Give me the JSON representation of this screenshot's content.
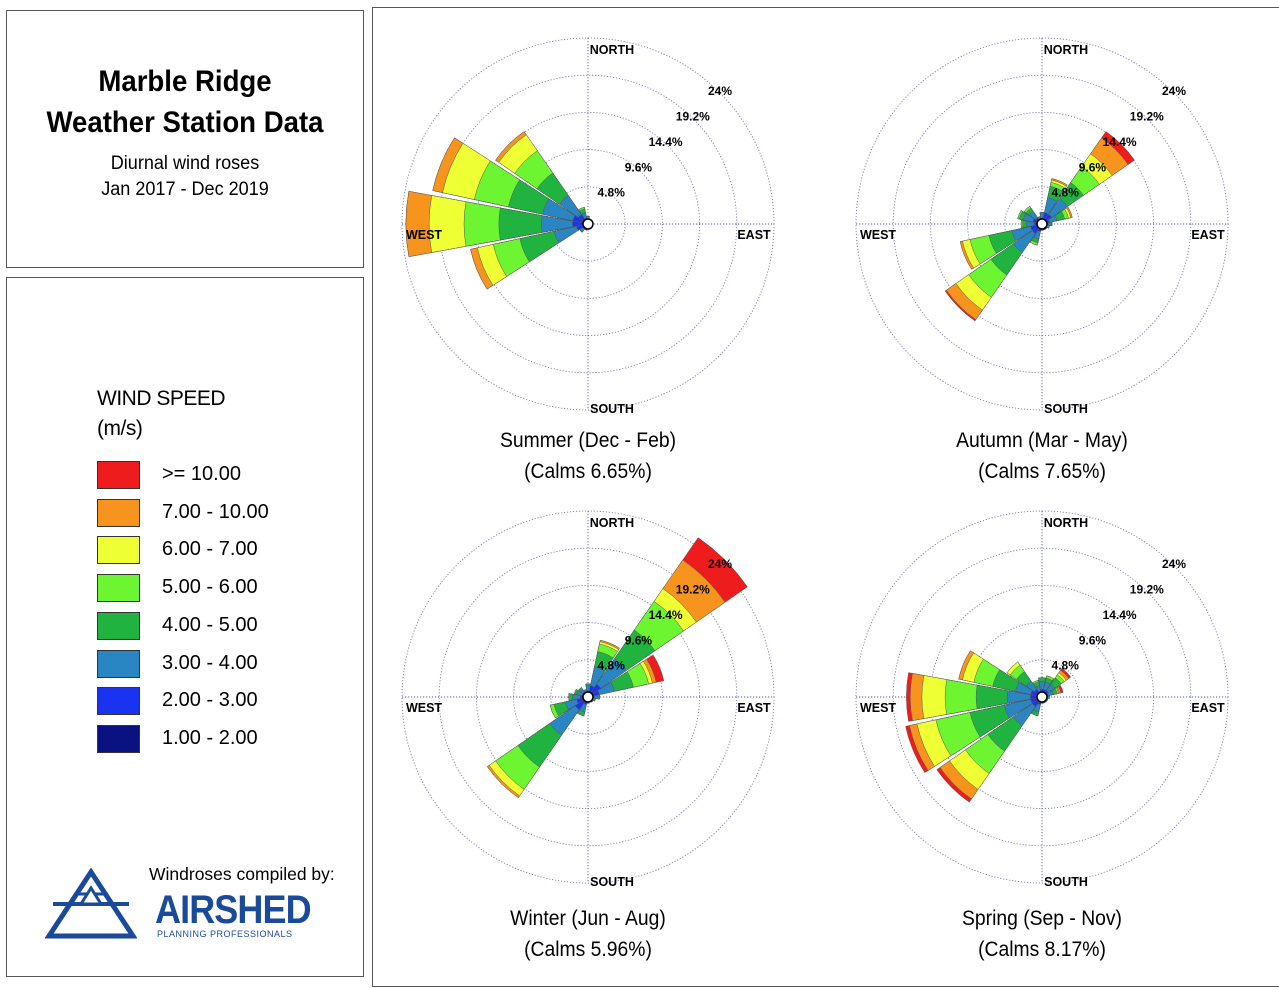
{
  "header": {
    "title_line1": "Marble Ridge",
    "title_line2": "Weather Station Data",
    "subtitle_line1": "Diurnal wind roses",
    "subtitle_line2": "Jan 2017 - Dec 2019"
  },
  "legend": {
    "title_line1": "WIND SPEED",
    "title_line2": "(m/s)",
    "items": [
      {
        "label": ">= 10.00",
        "color": "#ee1c1c"
      },
      {
        "label": "7.00 - 10.00",
        "color": "#f7941d"
      },
      {
        "label": "6.00 - 7.00",
        "color": "#eeff33"
      },
      {
        "label": "5.00 - 6.00",
        "color": "#6cf530"
      },
      {
        "label": "4.00 - 5.00",
        "color": "#20b340"
      },
      {
        "label": "3.00 - 4.00",
        "color": "#2a86c2"
      },
      {
        "label": "2.00 - 3.00",
        "color": "#1a33f0"
      },
      {
        "label": "1.00 - 2.00",
        "color": "#0a1180"
      }
    ]
  },
  "credit": {
    "compiled_by": "Windroses compiled by:",
    "logo_name": "AIRSHED",
    "logo_tagline": "PLANNING PROFESSIONALS"
  },
  "chart_data": [
    {
      "type": "windrose",
      "caption_line1": "Summer (Dec - Feb)",
      "caption_line2": "(Calms 6.65%)",
      "direction_labels": [
        "NORTH",
        "EAST",
        "SOUTH",
        "WEST"
      ],
      "ring_labels": [
        "4.8%",
        "9.6%",
        "14.4%",
        "19.2%",
        "24%"
      ],
      "rings": [
        4.8,
        9.6,
        14.4,
        19.2,
        24
      ],
      "sectors_deg": [
        0,
        22.5,
        45,
        67.5,
        90,
        112.5,
        135,
        157.5,
        180,
        202.5,
        225,
        247.5,
        270,
        292.5,
        315,
        337.5
      ],
      "cumulative_percent": [
        [
          0.3,
          0.6,
          1.0,
          1.0,
          1.0,
          1.0,
          1.0,
          1.0
        ],
        [
          0.3,
          0.5,
          0.7,
          0.7,
          0.7,
          0.7,
          0.7,
          0.7
        ],
        [
          0.3,
          0.5,
          0.6,
          0.6,
          0.6,
          0.6,
          0.6,
          0.6
        ],
        [
          0.3,
          0.5,
          0.6,
          0.6,
          0.6,
          0.6,
          0.6,
          0.6
        ],
        [
          0.3,
          0.5,
          0.6,
          0.6,
          0.6,
          0.6,
          0.6,
          0.6
        ],
        [
          0.3,
          0.5,
          0.6,
          0.6,
          0.6,
          0.6,
          0.6,
          0.6
        ],
        [
          0.3,
          0.5,
          0.6,
          0.6,
          0.6,
          0.6,
          0.6,
          0.6
        ],
        [
          0.3,
          0.5,
          0.6,
          0.6,
          0.6,
          0.6,
          0.6,
          0.6
        ],
        [
          0.3,
          0.5,
          0.6,
          0.6,
          0.6,
          0.6,
          0.6,
          0.6
        ],
        [
          0.3,
          0.5,
          0.8,
          0.8,
          0.8,
          0.8,
          0.8,
          0.8
        ],
        [
          0.3,
          0.8,
          1.2,
          1.3,
          1.3,
          1.3,
          1.3,
          1.3
        ],
        [
          0.3,
          1.5,
          4.5,
          9.0,
          12.5,
          14.6,
          15.5,
          15.5
        ],
        [
          0.4,
          2.0,
          6.0,
          11.5,
          16.0,
          20.5,
          23.5,
          23.5
        ],
        [
          0.4,
          2.0,
          6.0,
          10.5,
          15.0,
          19.2,
          20.5,
          20.5
        ],
        [
          0.3,
          1.5,
          4.5,
          8.0,
          11.5,
          14.0,
          14.5,
          14.5
        ],
        [
          0.3,
          0.8,
          1.5,
          2.0,
          2.2,
          2.2,
          2.2,
          2.2
        ]
      ]
    },
    {
      "type": "windrose",
      "caption_line1": "Autumn (Mar - May)",
      "caption_line2": "(Calms 7.65%)",
      "direction_labels": [
        "NORTH",
        "EAST",
        "SOUTH",
        "WEST"
      ],
      "ring_labels": [
        "4.8%",
        "9.6%",
        "14.4%",
        "19.2%",
        "24%"
      ],
      "rings": [
        4.8,
        9.6,
        14.4,
        19.2,
        24
      ],
      "sectors_deg": [
        0,
        22.5,
        45,
        67.5,
        90,
        112.5,
        135,
        157.5,
        180,
        202.5,
        225,
        247.5,
        270,
        292.5,
        315,
        337.5
      ],
      "cumulative_percent": [
        [
          0.3,
          0.8,
          1.5,
          1.5,
          1.5,
          1.5,
          1.5,
          1.5
        ],
        [
          0.3,
          1.5,
          3.5,
          5.0,
          5.5,
          5.8,
          6.0,
          6.0
        ],
        [
          0.3,
          1.5,
          4.0,
          6.5,
          9.0,
          11.0,
          13.5,
          14.5
        ],
        [
          0.3,
          1.0,
          2.0,
          3.0,
          3.5,
          3.8,
          4.0,
          4.0
        ],
        [
          0.3,
          0.8,
          1.2,
          1.3,
          1.3,
          1.3,
          1.3,
          1.3
        ],
        [
          0.3,
          0.6,
          1.0,
          1.0,
          1.0,
          1.0,
          1.0,
          1.0
        ],
        [
          0.3,
          0.5,
          0.8,
          0.8,
          0.8,
          0.8,
          0.8,
          0.8
        ],
        [
          0.3,
          0.5,
          0.8,
          0.8,
          0.8,
          0.8,
          0.8,
          0.8
        ],
        [
          0.3,
          0.5,
          0.8,
          0.8,
          0.8,
          0.8,
          0.8,
          0.8
        ],
        [
          0.3,
          1.0,
          2.0,
          2.5,
          2.8,
          2.8,
          2.8,
          2.8
        ],
        [
          0.3,
          1.5,
          4.5,
          8.0,
          11.5,
          13.5,
          15.0,
          15.2
        ],
        [
          0.3,
          1.5,
          4.0,
          7.0,
          9.5,
          10.5,
          10.8,
          10.8
        ],
        [
          0.3,
          1.0,
          2.0,
          2.5,
          2.7,
          2.7,
          2.7,
          2.7
        ],
        [
          0.3,
          1.2,
          2.5,
          3.0,
          3.2,
          3.2,
          3.2,
          3.2
        ],
        [
          0.3,
          1.0,
          2.0,
          2.5,
          2.8,
          2.8,
          2.8,
          2.8
        ],
        [
          0.3,
          0.6,
          1.0,
          1.0,
          1.0,
          1.0,
          1.0,
          1.0
        ]
      ]
    },
    {
      "type": "windrose",
      "caption_line1": "Winter (Jun - Aug)",
      "caption_line2": "(Calms 5.96%)",
      "direction_labels": [
        "NORTH",
        "EAST",
        "SOUTH",
        "WEST"
      ],
      "ring_labels": [
        "4.8%",
        "9.6%",
        "14.4%",
        "19.2%",
        "24%"
      ],
      "rings": [
        4.8,
        9.6,
        14.4,
        19.2,
        24
      ],
      "sectors_deg": [
        0,
        22.5,
        45,
        67.5,
        90,
        112.5,
        135,
        157.5,
        180,
        202.5,
        225,
        247.5,
        270,
        292.5,
        315,
        337.5
      ],
      "cumulative_percent": [
        [
          0.3,
          0.8,
          1.5,
          1.7,
          1.7,
          1.7,
          1.7,
          1.7
        ],
        [
          0.3,
          1.5,
          4.0,
          6.0,
          7.0,
          7.3,
          7.5,
          7.5
        ],
        [
          0.3,
          2.0,
          6.0,
          10.5,
          15.0,
          17.0,
          21.5,
          25.0
        ],
        [
          0.3,
          1.5,
          3.5,
          6.0,
          8.0,
          8.5,
          9.0,
          10.0
        ],
        [
          0.3,
          0.8,
          1.3,
          1.5,
          1.5,
          1.5,
          1.5,
          1.5
        ],
        [
          0.3,
          0.6,
          1.0,
          1.0,
          1.0,
          1.0,
          1.0,
          1.0
        ],
        [
          0.3,
          0.6,
          0.8,
          0.8,
          0.8,
          0.8,
          0.8,
          0.8
        ],
        [
          0.3,
          0.5,
          0.7,
          0.7,
          0.7,
          0.7,
          0.7,
          0.7
        ],
        [
          0.3,
          0.6,
          0.8,
          0.8,
          0.8,
          0.8,
          0.8,
          0.8
        ],
        [
          0.3,
          1.0,
          2.0,
          2.5,
          2.5,
          2.5,
          2.5,
          2.5
        ],
        [
          0.3,
          2.0,
          6.0,
          11.0,
          14.5,
          15.5,
          15.8,
          15.8
        ],
        [
          0.3,
          1.5,
          3.0,
          4.5,
          5.0,
          5.0,
          5.0,
          5.0
        ],
        [
          0.3,
          1.0,
          2.0,
          2.5,
          2.5,
          2.5,
          2.5,
          2.5
        ],
        [
          0.3,
          0.8,
          1.5,
          1.8,
          1.8,
          1.8,
          1.8,
          1.8
        ],
        [
          0.3,
          0.8,
          1.3,
          1.5,
          1.5,
          1.5,
          1.5,
          1.5
        ],
        [
          0.3,
          0.6,
          1.0,
          1.0,
          1.0,
          1.0,
          1.0,
          1.0
        ]
      ]
    },
    {
      "type": "windrose",
      "caption_line1": "Spring (Sep - Nov)",
      "caption_line2": "(Calms 8.17%)",
      "direction_labels": [
        "NORTH",
        "EAST",
        "SOUTH",
        "WEST"
      ],
      "ring_labels": [
        "4.8%",
        "9.6%",
        "14.4%",
        "19.2%",
        "24%"
      ],
      "rings": [
        4.8,
        9.6,
        14.4,
        19.2,
        24
      ],
      "sectors_deg": [
        0,
        22.5,
        45,
        67.5,
        90,
        112.5,
        135,
        157.5,
        180,
        202.5,
        225,
        247.5,
        270,
        292.5,
        315,
        337.5
      ],
      "cumulative_percent": [
        [
          0.3,
          1.0,
          2.0,
          2.5,
          2.5,
          2.5,
          2.5,
          2.5
        ],
        [
          0.3,
          1.0,
          2.0,
          2.5,
          2.8,
          2.8,
          2.8,
          2.8
        ],
        [
          0.3,
          1.0,
          2.0,
          3.0,
          3.5,
          3.8,
          4.2,
          4.5
        ],
        [
          0.3,
          0.8,
          1.5,
          2.0,
          2.2,
          2.3,
          2.5,
          2.8
        ],
        [
          0.3,
          0.6,
          1.0,
          1.0,
          1.0,
          1.0,
          1.0,
          1.0
        ],
        [
          0.3,
          0.5,
          0.8,
          0.8,
          0.8,
          0.8,
          0.8,
          0.8
        ],
        [
          0.3,
          0.5,
          0.8,
          0.8,
          0.8,
          0.8,
          0.8,
          0.8
        ],
        [
          0.3,
          0.5,
          0.8,
          0.8,
          0.8,
          0.8,
          0.8,
          0.8
        ],
        [
          0.3,
          0.5,
          0.8,
          0.8,
          0.8,
          0.8,
          0.8,
          0.8
        ],
        [
          0.3,
          1.0,
          2.0,
          2.5,
          2.5,
          2.5,
          2.5,
          2.5
        ],
        [
          0.3,
          1.5,
          4.5,
          8.5,
          12.0,
          14.5,
          16.0,
          16.5
        ],
        [
          0.3,
          1.5,
          5.0,
          9.5,
          14.0,
          16.5,
          17.5,
          18.0
        ],
        [
          0.3,
          1.5,
          4.5,
          8.5,
          12.5,
          15.5,
          17.0,
          17.5
        ],
        [
          0.3,
          1.5,
          3.5,
          6.5,
          9.0,
          10.5,
          11.0,
          11.0
        ],
        [
          0.3,
          1.2,
          2.5,
          4.0,
          5.0,
          5.5,
          5.5,
          5.5
        ],
        [
          0.3,
          0.8,
          1.5,
          2.0,
          2.2,
          2.2,
          2.2,
          2.2
        ]
      ]
    }
  ]
}
